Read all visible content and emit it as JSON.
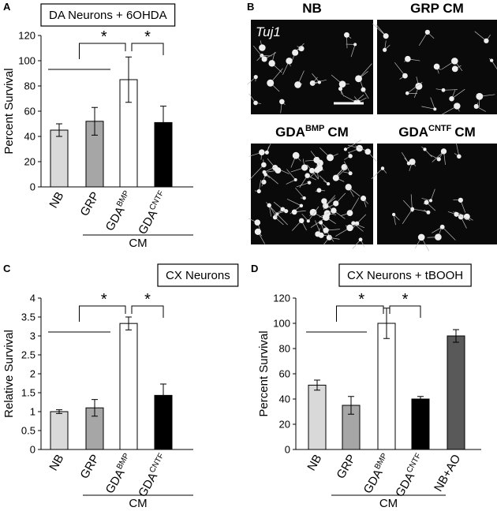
{
  "chart_data": [
    {
      "type": "bar",
      "panel": "A",
      "title": "DA Neurons + 6OHDA",
      "ylabel": "Percent Survival",
      "categories": [
        "NB",
        "GRP",
        "GDA",
        "GDA"
      ],
      "category_superscripts": [
        null,
        null,
        "BMP",
        "CNTF"
      ],
      "values": [
        45,
        52,
        85,
        51
      ],
      "errors": [
        5,
        11,
        18,
        13
      ],
      "colors": [
        "#d9d9d9",
        "#a6a6a6",
        "#ffffff",
        "#000000"
      ],
      "ylim": [
        0,
        120
      ],
      "yticks": [
        0,
        20,
        40,
        60,
        80,
        100,
        120
      ],
      "group_label": "CM",
      "annotations": [
        "*",
        "*"
      ]
    },
    {
      "type": "bar",
      "panel": "C",
      "title": "CX Neurons",
      "ylabel": "Relative Survival",
      "categories": [
        "NB",
        "GRP",
        "GDA",
        "GDA"
      ],
      "category_superscripts": [
        null,
        null,
        "BMP",
        "CNTF"
      ],
      "values": [
        1.0,
        1.1,
        3.33,
        1.43
      ],
      "errors": [
        0.05,
        0.22,
        0.17,
        0.3
      ],
      "colors": [
        "#d9d9d9",
        "#a6a6a6",
        "#ffffff",
        "#000000"
      ],
      "ylim": [
        0,
        4
      ],
      "yticks": [
        0,
        0.5,
        1,
        1.5,
        2,
        2.5,
        3,
        3.5,
        4
      ],
      "group_label": "CM",
      "annotations": [
        "*",
        "*"
      ]
    },
    {
      "type": "bar",
      "panel": "D",
      "title": "CX Neurons + tBOOH",
      "ylabel": "Percent Survival",
      "categories": [
        "NB",
        "GRP",
        "GDA",
        "GDA",
        "NB+AO"
      ],
      "category_superscripts": [
        null,
        null,
        "BMP",
        "CNTF",
        null
      ],
      "values": [
        51,
        35,
        100,
        40,
        90
      ],
      "errors": [
        4,
        7,
        12,
        2,
        5
      ],
      "colors": [
        "#d9d9d9",
        "#a6a6a6",
        "#ffffff",
        "#000000",
        "#595959"
      ],
      "ylim": [
        0,
        120
      ],
      "yticks": [
        0,
        20,
        40,
        60,
        80,
        100,
        120
      ],
      "group_label": "CM",
      "annotations": [
        "*",
        "*"
      ]
    }
  ],
  "image_panel": {
    "panel": "B",
    "stain": "Tuj1",
    "images": [
      {
        "title": "NB"
      },
      {
        "title": "GRP CM"
      },
      {
        "title": "GDA",
        "superscript": "BMP",
        "suffix": "CM"
      },
      {
        "title": "GDA",
        "superscript": "CNTF",
        "suffix": "CM"
      }
    ]
  }
}
